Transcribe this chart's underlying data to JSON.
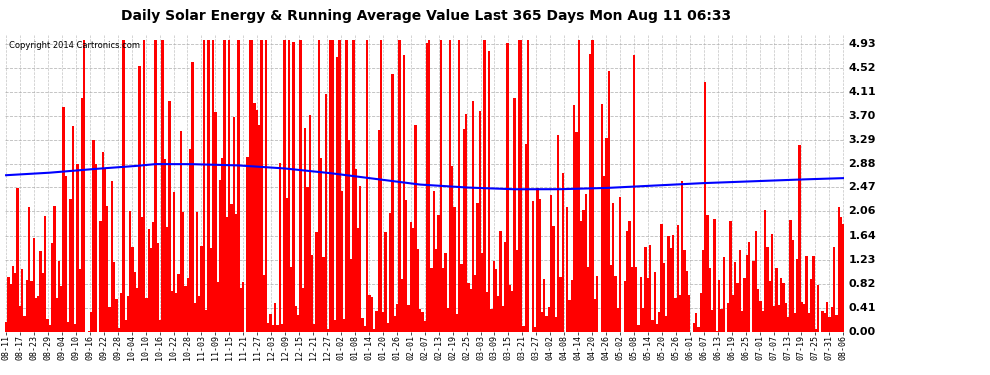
{
  "title": "Daily Solar Energy & Running Average Value Last 365 Days Mon Aug 11 06:33",
  "copyright": "Copyright 2014 Cartronics.com",
  "background_color": "#ffffff",
  "plot_bg_color": "#ffffff",
  "bar_color": "#ff0000",
  "avg_line_color": "#0000ff",
  "yticks": [
    0.0,
    0.41,
    0.82,
    1.23,
    1.64,
    2.06,
    2.47,
    2.88,
    3.29,
    3.7,
    4.11,
    4.52,
    4.93
  ],
  "ymax": 5.1,
  "ymin": 0.0,
  "legend_avg_bg": "#0000aa",
  "legend_daily_bg": "#cc0000",
  "xtick_labels": [
    "08-11",
    "08-17",
    "08-23",
    "08-29",
    "09-04",
    "09-10",
    "09-16",
    "09-22",
    "09-28",
    "10-04",
    "10-10",
    "10-16",
    "10-22",
    "10-28",
    "11-03",
    "11-09",
    "11-15",
    "11-21",
    "11-27",
    "12-03",
    "12-09",
    "12-15",
    "12-21",
    "12-27",
    "01-02",
    "01-08",
    "01-14",
    "01-20",
    "01-26",
    "02-01",
    "02-07",
    "02-13",
    "02-19",
    "02-25",
    "03-03",
    "03-09",
    "03-15",
    "03-21",
    "03-27",
    "04-02",
    "04-08",
    "04-14",
    "04-20",
    "04-26",
    "05-02",
    "05-08",
    "05-14",
    "05-20",
    "05-26",
    "06-01",
    "06-07",
    "06-13",
    "06-19",
    "06-25",
    "07-01",
    "07-07",
    "07-13",
    "07-19",
    "07-25",
    "07-31",
    "08-06"
  ],
  "n_bars": 365,
  "avg_curve_points": [
    [
      0,
      2.68
    ],
    [
      18,
      2.72
    ],
    [
      36,
      2.78
    ],
    [
      54,
      2.83
    ],
    [
      65,
      2.87
    ],
    [
      80,
      2.87
    ],
    [
      100,
      2.85
    ],
    [
      120,
      2.8
    ],
    [
      140,
      2.72
    ],
    [
      160,
      2.62
    ],
    [
      180,
      2.52
    ],
    [
      200,
      2.47
    ],
    [
      220,
      2.44
    ],
    [
      240,
      2.44
    ],
    [
      260,
      2.46
    ],
    [
      280,
      2.5
    ],
    [
      300,
      2.54
    ],
    [
      320,
      2.57
    ],
    [
      340,
      2.6
    ],
    [
      364,
      2.63
    ]
  ]
}
